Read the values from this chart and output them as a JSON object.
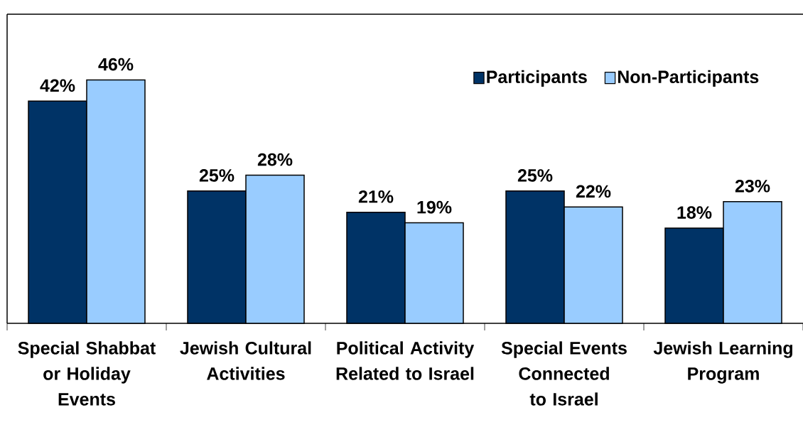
{
  "chart_data": {
    "type": "bar",
    "categories": [
      "Special Shabbat or Holiday Events",
      "Jewish Cultural Activities",
      "Political Activity Related to Israel",
      "Special Events Connected to Israel",
      "Jewish Learning Program"
    ],
    "series": [
      {
        "name": "Participants",
        "color": "#003366",
        "values": [
          42,
          25,
          21,
          25,
          18
        ],
        "value_labels": [
          "42%",
          "25%",
          "21%",
          "25%",
          "18%"
        ]
      },
      {
        "name": "Non-Participants",
        "color": "#99ccff",
        "values": [
          46,
          28,
          19,
          22,
          23
        ],
        "value_labels": [
          "46%",
          "28%",
          "19%",
          "22%",
          "23%"
        ]
      }
    ],
    "legend": "top right"
  }
}
